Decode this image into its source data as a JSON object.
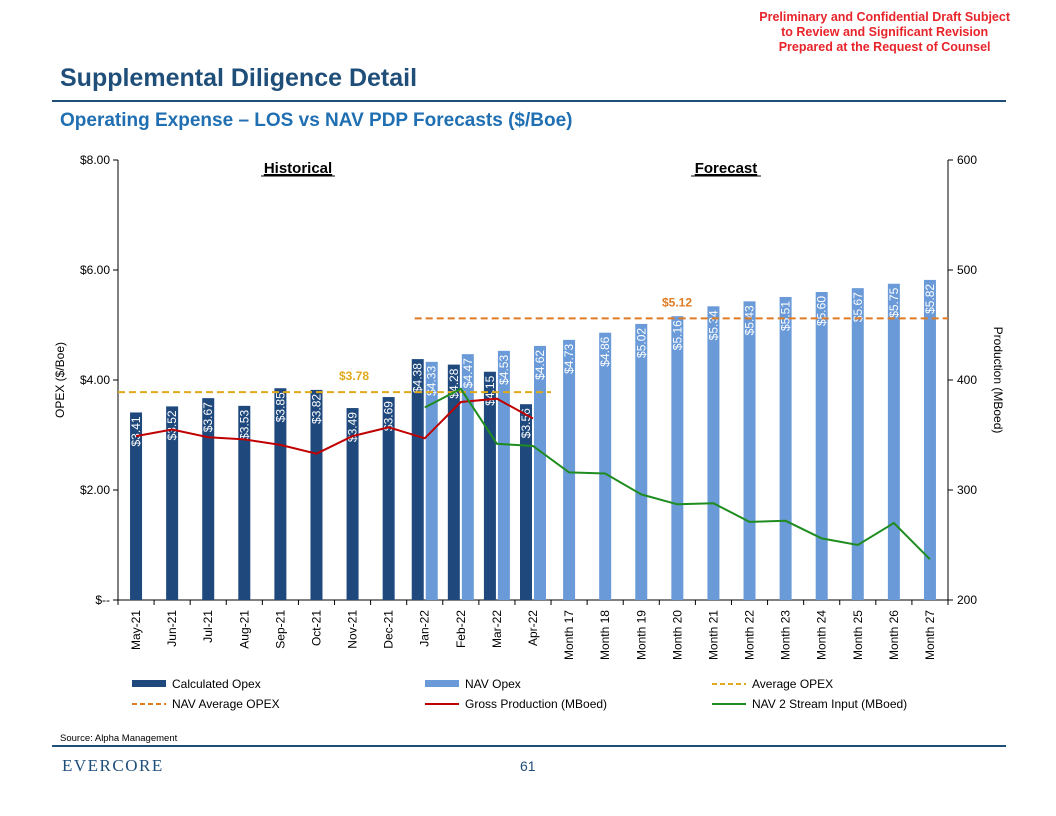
{
  "header": {
    "confidential_lines": [
      "Preliminary and Confidential Draft Subject",
      "to Review and Significant Revision",
      "Prepared at the Request of Counsel"
    ],
    "title": "Supplemental Diligence Detail",
    "subtitle": "Operating Expense – LOS vs NAV PDP Forecasts ($/Boe)"
  },
  "footer": {
    "source": "Source: Alpha Management",
    "logo": "EVERCORE",
    "page_number": "61"
  },
  "colors": {
    "calculated": "#1f497d",
    "nav": "#6a9bd8",
    "avg": "#e0a91a",
    "nav_avg": "#e07b24",
    "gross": "#c00000",
    "nav2": "#1e8c1e",
    "title": "#1f4e79"
  },
  "chart_data": {
    "type": "bar",
    "categories": [
      "May-21",
      "Jun-21",
      "Jul-21",
      "Aug-21",
      "Sep-21",
      "Oct-21",
      "Nov-21",
      "Dec-21",
      "Jan-22",
      "Feb-22",
      "Mar-22",
      "Apr-22",
      "Month 17",
      "Month 18",
      "Month 19",
      "Month 20",
      "Month 21",
      "Month 22",
      "Month 23",
      "Month 24",
      "Month 25",
      "Month 26",
      "Month 27"
    ],
    "series": [
      {
        "name": "Calculated Opex",
        "kind": "bar",
        "axis": "left",
        "values": [
          3.41,
          3.52,
          3.67,
          3.53,
          3.85,
          3.82,
          3.49,
          3.69,
          4.38,
          4.28,
          4.15,
          3.56,
          null,
          null,
          null,
          null,
          null,
          null,
          null,
          null,
          null,
          null,
          null
        ]
      },
      {
        "name": "NAV Opex",
        "kind": "bar",
        "axis": "left",
        "values": [
          null,
          null,
          null,
          null,
          null,
          null,
          null,
          null,
          4.33,
          4.47,
          4.53,
          4.62,
          4.73,
          4.86,
          5.02,
          5.16,
          5.34,
          5.43,
          5.51,
          5.6,
          5.67,
          5.75,
          5.82
        ]
      },
      {
        "name": "Average OPEX",
        "kind": "hline",
        "axis": "left",
        "value": 3.78,
        "from": 0,
        "to": 11
      },
      {
        "name": "NAV Average OPEX",
        "kind": "hline",
        "axis": "left",
        "value": 5.12,
        "from": 8,
        "to": 22
      },
      {
        "name": "Gross Production (MBoed)",
        "kind": "line",
        "axis": "right",
        "values": [
          349,
          355,
          348,
          346,
          341,
          333,
          349,
          357,
          347,
          380,
          383,
          365,
          null,
          null,
          null,
          null,
          null,
          null,
          null,
          null,
          null,
          null,
          null
        ]
      },
      {
        "name": "NAV 2 Stream Input (MBoed)",
        "kind": "line",
        "axis": "right",
        "values": [
          null,
          null,
          null,
          null,
          null,
          null,
          null,
          null,
          375,
          392,
          342,
          340,
          316,
          315,
          296,
          287,
          288,
          271,
          272,
          256,
          250,
          270,
          237
        ]
      }
    ],
    "bar_labels": {
      "calculated": [
        "$3.41",
        "$3.52",
        "$3.67",
        "$3.53",
        "$3.85",
        "$3.82",
        "$3.49",
        "$3.69",
        "$4.38",
        "$4.28",
        "$4.15",
        "$3.56"
      ],
      "nav": [
        "$4.33",
        "$4.47",
        "$4.53",
        "$4.62",
        "$4.73",
        "$4.86",
        "$5.02",
        "$5.16",
        "$5.34",
        "$5.43",
        "$5.51",
        "$5.60",
        "$5.67",
        "$5.75",
        "$5.82"
      ]
    },
    "annotations": {
      "historical": "Historical",
      "forecast": "Forecast",
      "avg_label": "$3.78",
      "nav_avg_label": "$5.12"
    },
    "ylabel_left": "OPEX ($/Boe)",
    "ylabel_right": "Production (MBoed)",
    "ylim_left": [
      0,
      8
    ],
    "ylim_right": [
      200,
      600
    ],
    "left_ticks": [
      {
        "value": 0,
        "label": "$--"
      },
      {
        "value": 2,
        "label": "$2.00"
      },
      {
        "value": 4,
        "label": "$4.00"
      },
      {
        "value": 6,
        "label": "$6.00"
      },
      {
        "value": 8,
        "label": "$8.00"
      }
    ],
    "right_ticks": [
      {
        "value": 200,
        "label": "200"
      },
      {
        "value": 300,
        "label": "300"
      },
      {
        "value": 400,
        "label": "400"
      },
      {
        "value": 500,
        "label": "500"
      },
      {
        "value": 600,
        "label": "600"
      }
    ],
    "legend": [
      {
        "label": "Calculated Opex",
        "style": "bar",
        "color": "#1f497d"
      },
      {
        "label": "NAV Opex",
        "style": "bar",
        "color": "#6a9bd8"
      },
      {
        "label": "Average OPEX",
        "style": "dash",
        "color": "#e0a91a"
      },
      {
        "label": "NAV Average OPEX",
        "style": "dash",
        "color": "#e07b24"
      },
      {
        "label": "Gross Production (MBoed)",
        "style": "line",
        "color": "#c00000"
      },
      {
        "label": "NAV 2 Stream Input (MBoed)",
        "style": "line",
        "color": "#1e8c1e"
      }
    ]
  }
}
